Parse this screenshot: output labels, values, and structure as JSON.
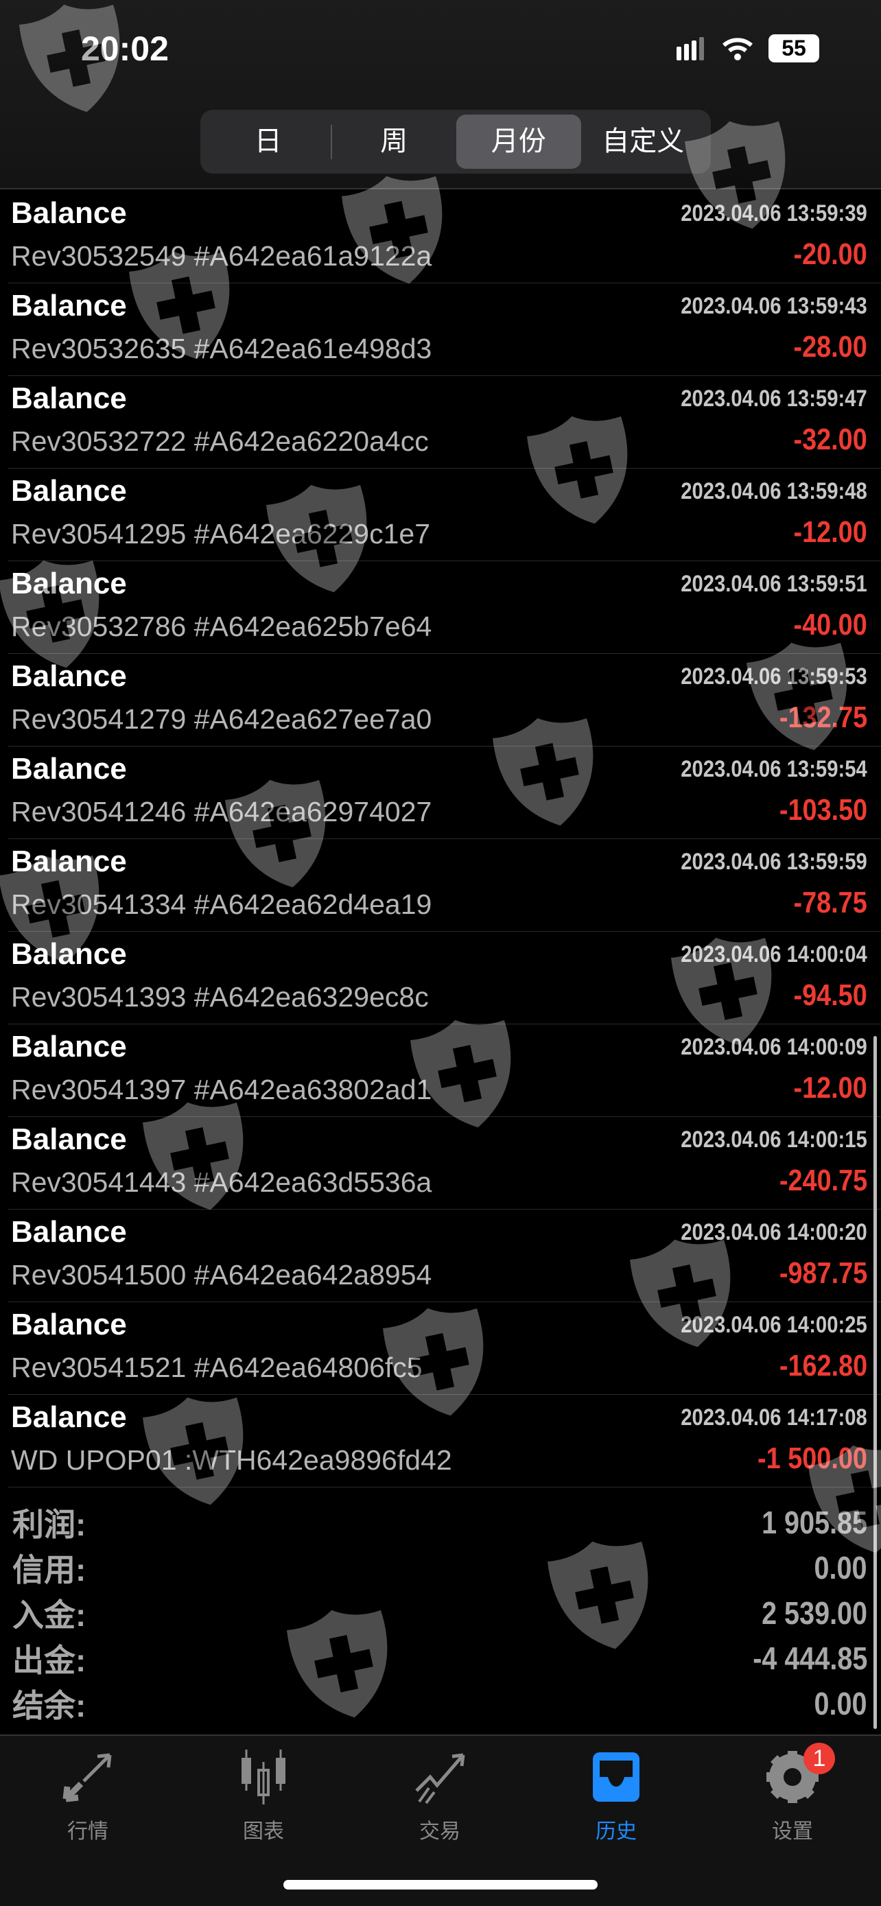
{
  "status_bar": {
    "time": "20:02",
    "battery": "55"
  },
  "segments": [
    {
      "label": "日"
    },
    {
      "label": "周"
    },
    {
      "label": "月份",
      "active": true
    },
    {
      "label": "自定义"
    }
  ],
  "rows": [
    {
      "title": "Balance",
      "date": "2023.04.06 13:59:39",
      "desc": "Rev30532549 #A642ea61a9122a",
      "amount": "-20.00"
    },
    {
      "title": "Balance",
      "date": "2023.04.06 13:59:43",
      "desc": "Rev30532635 #A642ea61e498d3",
      "amount": "-28.00"
    },
    {
      "title": "Balance",
      "date": "2023.04.06 13:59:47",
      "desc": "Rev30532722 #A642ea6220a4cc",
      "amount": "-32.00"
    },
    {
      "title": "Balance",
      "date": "2023.04.06 13:59:48",
      "desc": "Rev30541295 #A642ea6229c1e7",
      "amount": "-12.00"
    },
    {
      "title": "Balance",
      "date": "2023.04.06 13:59:51",
      "desc": "Rev30532786 #A642ea625b7e64",
      "amount": "-40.00"
    },
    {
      "title": "Balance",
      "date": "2023.04.06 13:59:53",
      "desc": "Rev30541279 #A642ea627ee7a0",
      "amount": "-132.75"
    },
    {
      "title": "Balance",
      "date": "2023.04.06 13:59:54",
      "desc": "Rev30541246 #A642ea62974027",
      "amount": "-103.50"
    },
    {
      "title": "Balance",
      "date": "2023.04.06 13:59:59",
      "desc": "Rev30541334 #A642ea62d4ea19",
      "amount": "-78.75"
    },
    {
      "title": "Balance",
      "date": "2023.04.06 14:00:04",
      "desc": "Rev30541393 #A642ea6329ec8c",
      "amount": "-94.50"
    },
    {
      "title": "Balance",
      "date": "2023.04.06 14:00:09",
      "desc": "Rev30541397 #A642ea63802ad1",
      "amount": "-12.00"
    },
    {
      "title": "Balance",
      "date": "2023.04.06 14:00:15",
      "desc": "Rev30541443 #A642ea63d5536a",
      "amount": "-240.75"
    },
    {
      "title": "Balance",
      "date": "2023.04.06 14:00:20",
      "desc": "Rev30541500 #A642ea642a8954",
      "amount": "-987.75"
    },
    {
      "title": "Balance",
      "date": "2023.04.06 14:00:25",
      "desc": "Rev30541521 #A642ea64806fc5",
      "amount": "-162.80"
    },
    {
      "title": "Balance",
      "date": "2023.04.06 14:17:08",
      "desc": "WD UPOP01 :WTH642ea9896fd42",
      "amount": "-1 500.00"
    }
  ],
  "summary": [
    {
      "label": "利润:",
      "value": "1 905.85"
    },
    {
      "label": "信用:",
      "value": "0.00"
    },
    {
      "label": "入金:",
      "value": "2 539.00"
    },
    {
      "label": "出金:",
      "value": "-4 444.85"
    },
    {
      "label": "结余:",
      "value": "0.00"
    }
  ],
  "tabs": [
    {
      "label": "行情",
      "icon": "quotes-arrows-icon"
    },
    {
      "label": "图表",
      "icon": "candlestick-icon"
    },
    {
      "label": "交易",
      "icon": "trade-trend-icon"
    },
    {
      "label": "历史",
      "icon": "inbox-history-icon",
      "active": true
    },
    {
      "label": "设置",
      "icon": "gear-icon",
      "badge": "1"
    }
  ],
  "colors": {
    "negative": "#ee3b33",
    "accent": "#1e8bff",
    "background": "#000000"
  }
}
